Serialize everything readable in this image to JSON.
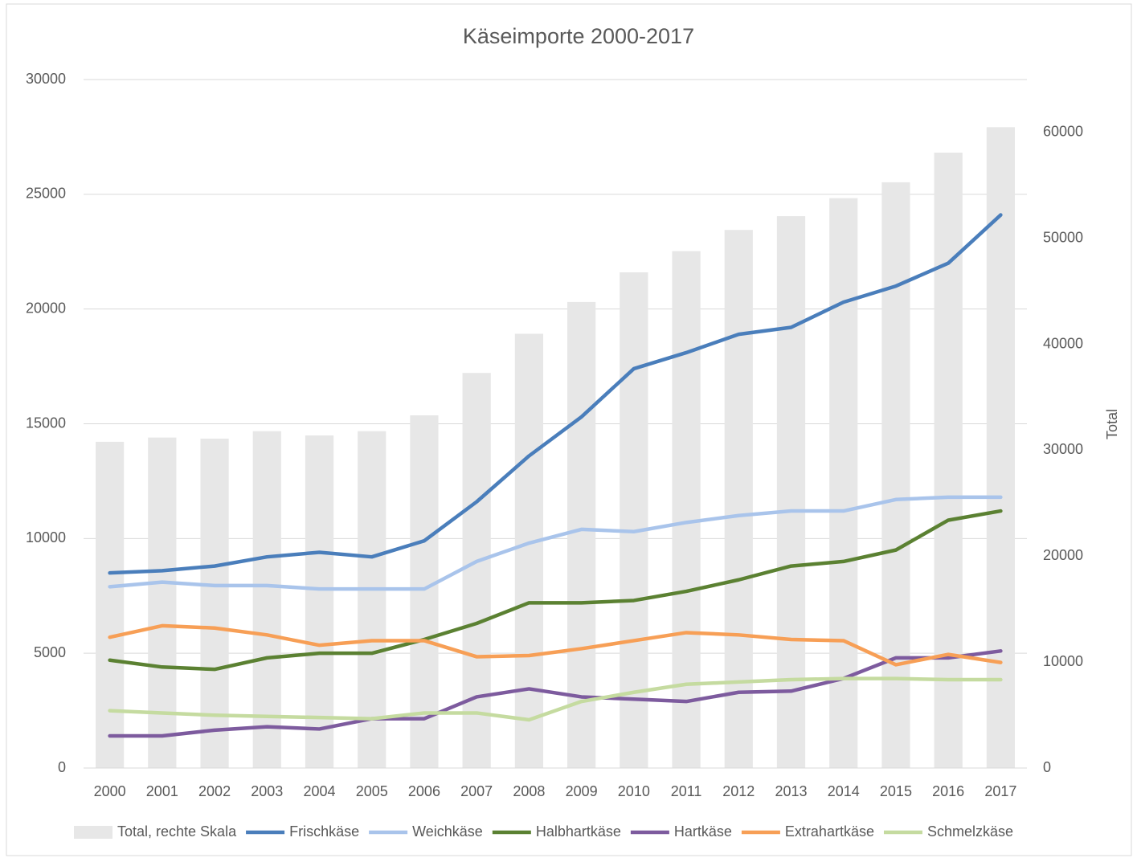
{
  "chart_data": {
    "type": "bar+line",
    "title": "Käseimporte 2000-2017",
    "y2label": "Total",
    "categories": [
      "2000",
      "2001",
      "2002",
      "2003",
      "2004",
      "2005",
      "2006",
      "2007",
      "2008",
      "2009",
      "2010",
      "2011",
      "2012",
      "2013",
      "2014",
      "2015",
      "2016",
      "2017"
    ],
    "ylim": [
      0,
      30000
    ],
    "yticks": [
      0,
      5000,
      10000,
      15000,
      20000,
      25000,
      30000
    ],
    "y2lim": [
      0,
      65000
    ],
    "y2ticks": [
      0,
      10000,
      20000,
      30000,
      40000,
      50000,
      60000
    ],
    "grid": true,
    "legend": "bottom",
    "series": [
      {
        "name": "Total, rechte Skala",
        "type": "bar",
        "axis": "y2",
        "color": "#e7e7e7",
        "values": [
          30800,
          31200,
          31100,
          31800,
          31400,
          31800,
          33300,
          37300,
          41000,
          44000,
          46800,
          48800,
          50800,
          52100,
          53800,
          55300,
          58100,
          60500
        ]
      },
      {
        "name": "Frischkäse",
        "type": "line",
        "color": "#4a7ebb",
        "values": [
          8500,
          8600,
          8800,
          9200,
          9400,
          9200,
          9900,
          11600,
          13600,
          15300,
          17400,
          18100,
          18900,
          19200,
          20300,
          21000,
          22000,
          24100
        ]
      },
      {
        "name": "Weichkäse",
        "type": "line",
        "color": "#a9c4eb",
        "values": [
          7900,
          8100,
          7950,
          7950,
          7800,
          7800,
          7800,
          9000,
          9800,
          10400,
          10300,
          10700,
          11000,
          11200,
          11200,
          11700,
          11800,
          11800
        ]
      },
      {
        "name": "Halbhartkäse",
        "type": "line",
        "color": "#5b8132",
        "values": [
          4700,
          4400,
          4300,
          4800,
          5000,
          5000,
          5600,
          6300,
          7200,
          7200,
          7300,
          7700,
          8200,
          8800,
          9000,
          9500,
          10800,
          11200
        ]
      },
      {
        "name": "Hartkäse",
        "type": "line",
        "color": "#7d5b9e",
        "values": [
          1400,
          1400,
          1650,
          1800,
          1700,
          2150,
          2150,
          3100,
          3450,
          3100,
          3000,
          2900,
          3300,
          3350,
          3900,
          4800,
          4800,
          5100
        ]
      },
      {
        "name": "Extrahartkäse",
        "type": "line",
        "color": "#f79f56",
        "values": [
          5700,
          6200,
          6100,
          5800,
          5350,
          5550,
          5550,
          4850,
          4900,
          5200,
          5550,
          5900,
          5800,
          5600,
          5550,
          4500,
          4950,
          4600
        ]
      },
      {
        "name": "Schmelzkäse",
        "type": "line",
        "color": "#c5dba0",
        "values": [
          2500,
          2400,
          2300,
          2250,
          2200,
          2150,
          2400,
          2400,
          2100,
          2900,
          3300,
          3650,
          3750,
          3850,
          3900,
          3900,
          3850,
          3850
        ]
      }
    ]
  }
}
